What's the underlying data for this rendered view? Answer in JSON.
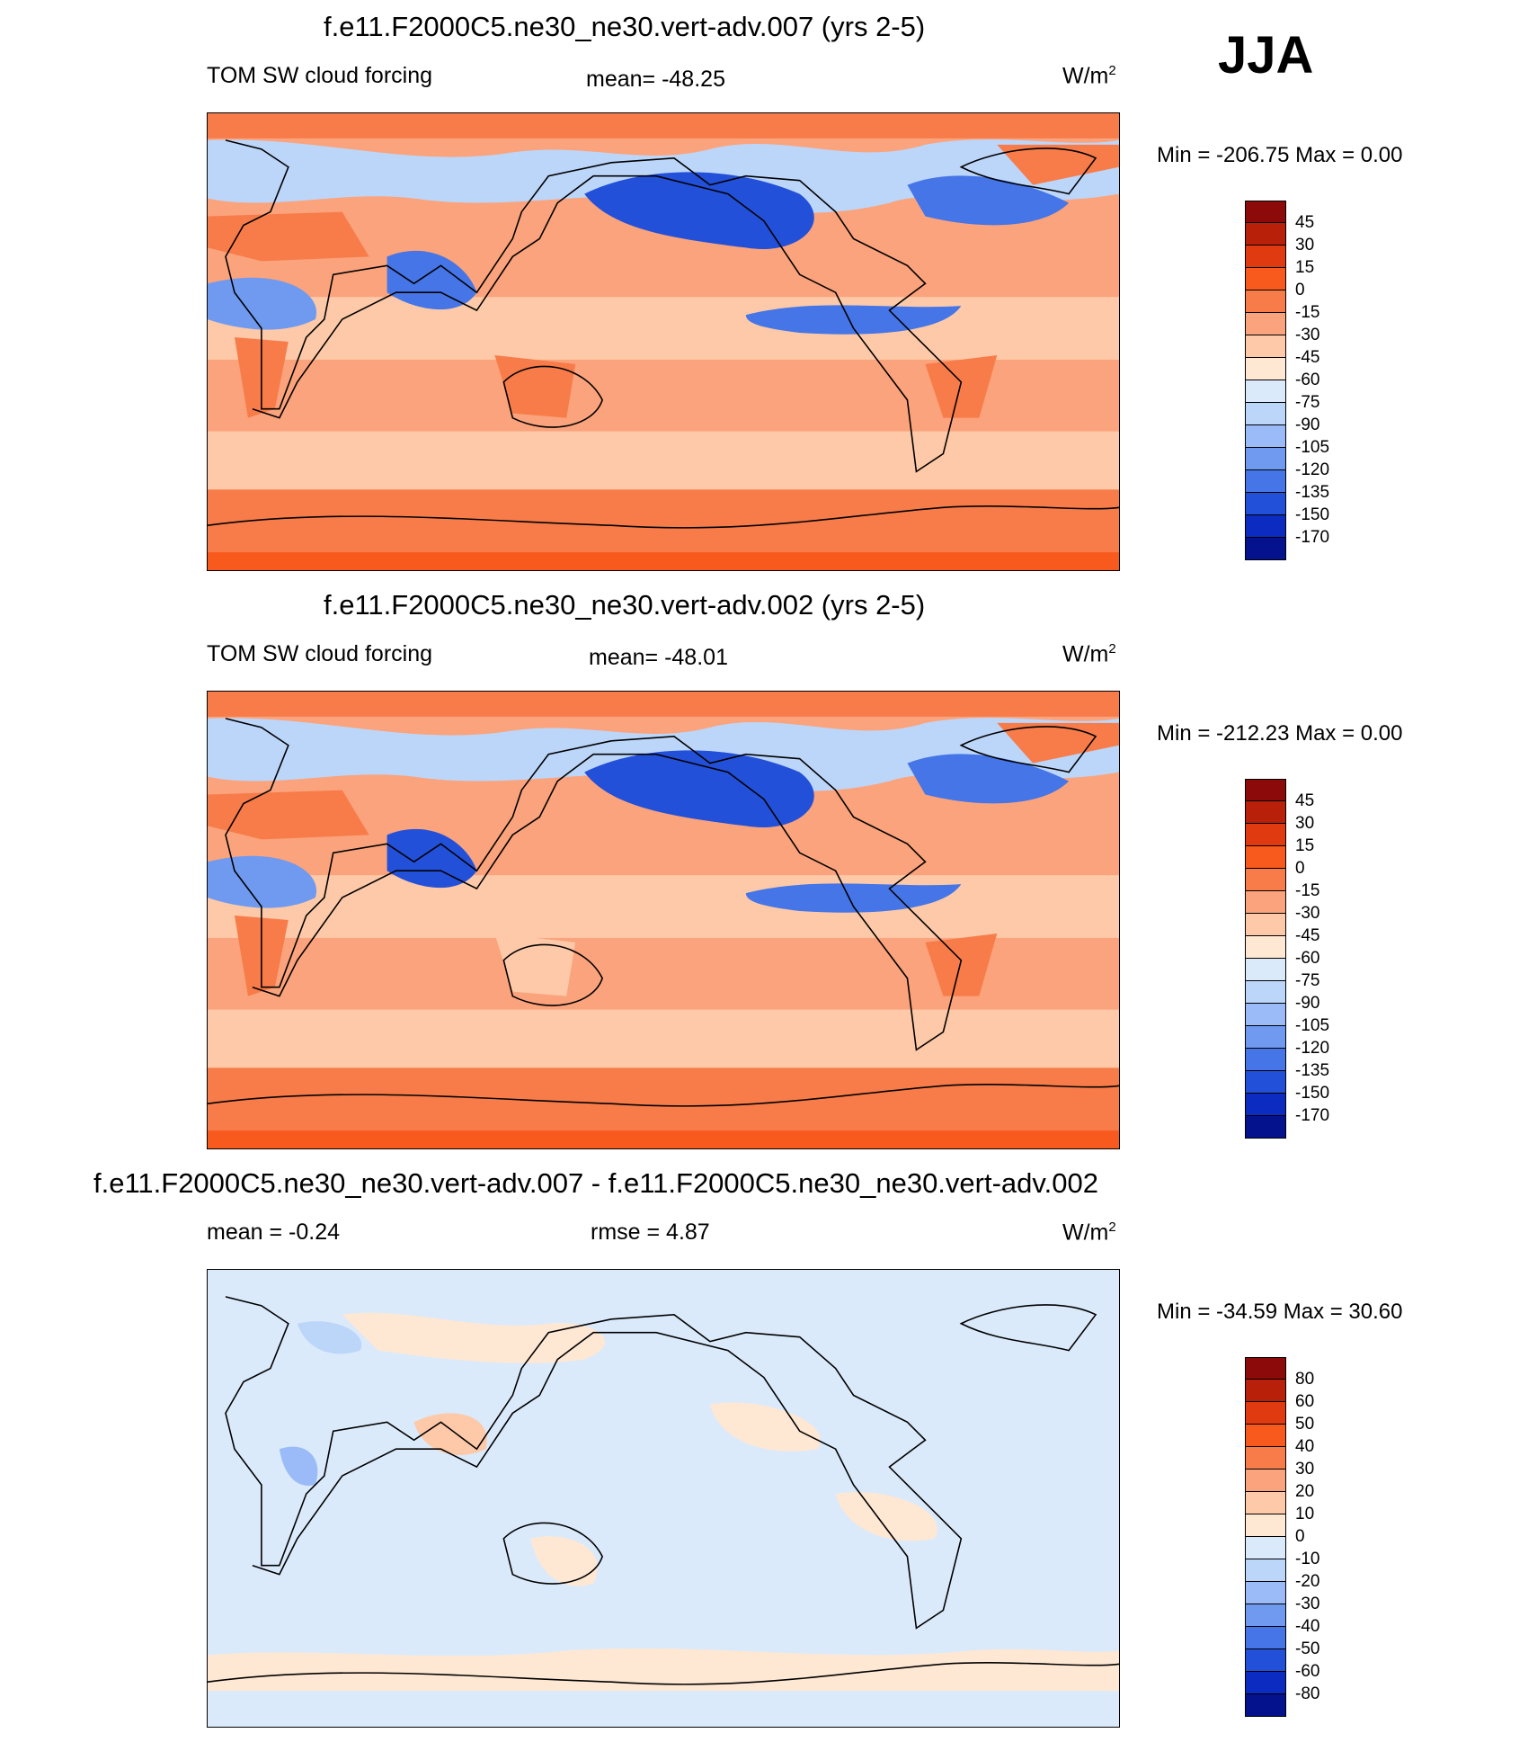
{
  "season": "JJA",
  "panels": [
    {
      "id": "p1",
      "title": "f.e11.F2000C5.ne30_ne30.vert-adv.007 (yrs 2-5)",
      "left_label": "TOM SW cloud forcing",
      "center_label": "mean= -48.25",
      "units_base": "W/m",
      "units_exp": "2",
      "minmax": "Min = -206.75 Max =    0.00",
      "kind": "field"
    },
    {
      "id": "p2",
      "title": "f.e11.F2000C5.ne30_ne30.vert-adv.002 (yrs 2-5)",
      "left_label": "TOM SW cloud forcing",
      "center_label": "mean= -48.01",
      "units_base": "W/m",
      "units_exp": "2",
      "minmax": "Min = -212.23 Max =    0.00",
      "kind": "field"
    },
    {
      "id": "p3",
      "title": "f.e11.F2000C5.ne30_ne30.vert-adv.007 - f.e11.F2000C5.ne30_ne30.vert-adv.002",
      "left_label": "mean =  -0.24",
      "center_label": "rmse =   4.87",
      "units_base": "W/m",
      "units_exp": "2",
      "minmax": "Min = -34.59 Max =  30.60",
      "kind": "diff"
    }
  ],
  "colorbars": {
    "field": {
      "labels": [
        "45",
        "30",
        "15",
        "0",
        "-15",
        "-30",
        "-45",
        "-60",
        "-75",
        "-90",
        "-105",
        "-120",
        "-135",
        "-150",
        "-170"
      ],
      "colors": [
        "#8c0a0a",
        "#b8200a",
        "#e03a10",
        "#f85a1e",
        "#f77c4a",
        "#fba37c",
        "#fdc9a8",
        "#fee7d3",
        "#dbeafb",
        "#bcd6fa",
        "#9abbf7",
        "#6f9af0",
        "#4575e6",
        "#2350d9",
        "#0c2bc0",
        "#04128e"
      ]
    },
    "diff": {
      "labels": [
        "80",
        "60",
        "50",
        "40",
        "30",
        "20",
        "10",
        "0",
        "-10",
        "-20",
        "-30",
        "-40",
        "-50",
        "-60",
        "-80"
      ],
      "colors": [
        "#8c0a0a",
        "#b8200a",
        "#e03a10",
        "#f85a1e",
        "#f77c4a",
        "#fba37c",
        "#fdc9a8",
        "#fee7d3",
        "#dbeafb",
        "#bcd6fa",
        "#9abbf7",
        "#6f9af0",
        "#4575e6",
        "#2350d9",
        "#0c2bc0",
        "#04128e"
      ]
    }
  }
}
